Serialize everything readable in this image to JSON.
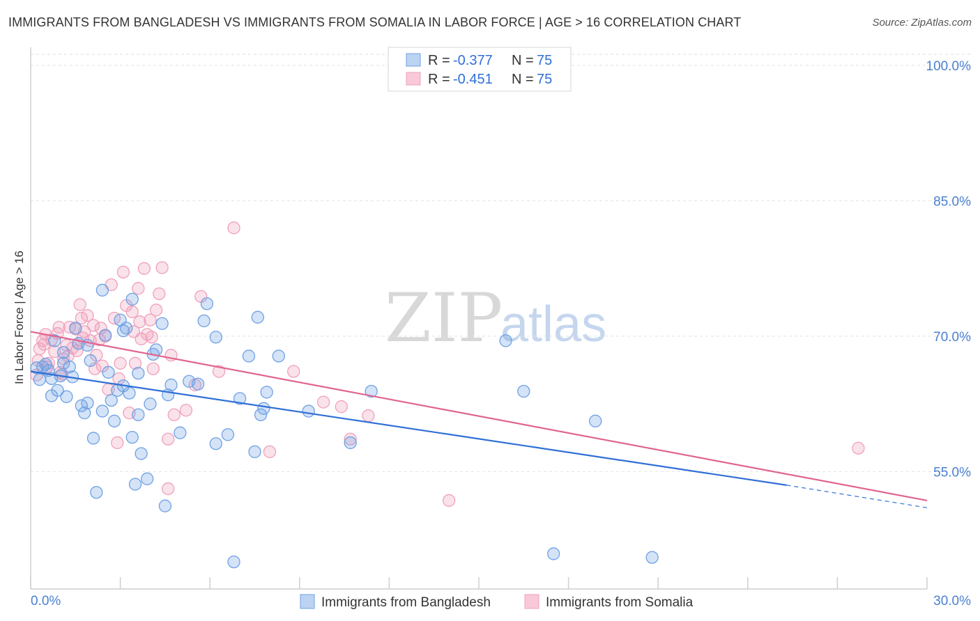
{
  "title": "IMMIGRANTS FROM BANGLADESH VS IMMIGRANTS FROM SOMALIA IN LABOR FORCE | AGE > 16 CORRELATION CHART",
  "source": "Source: ZipAtlas.com",
  "colors": {
    "bangladesh": "#6fa1e3",
    "bangladesh_line": "#2f6fd6",
    "somalia": "#f0a0bb",
    "somalia_line": "#e0648f",
    "tick": "#4a7fd0"
  },
  "legend": {
    "rows": [
      {
        "r_label": "R =",
        "r_value": "-0.377",
        "n_label": "N =",
        "n_value": "75"
      },
      {
        "r_label": "R =",
        "r_value": "-0.451",
        "n_label": "N =",
        "n_value": "75"
      }
    ]
  },
  "watermark": {
    "a": "ZIP",
    "b": "atlas"
  },
  "chart_data": {
    "type": "scatter",
    "xlabel": "",
    "ylabel": "In Labor Force | Age > 16",
    "xlim": [
      0,
      30
    ],
    "ylim": [
      42,
      102
    ],
    "x_tick_labels": [
      "0.0%",
      "30.0%"
    ],
    "y_ticks": [
      55,
      70,
      85,
      100
    ],
    "y_tick_labels": [
      "55.0%",
      "70.0%",
      "85.0%",
      "100.0%"
    ],
    "series": [
      {
        "name": "Immigrants from Bangladesh",
        "trend": {
          "x": [
            0,
            25.3
          ],
          "y": [
            66.1,
            53.5
          ],
          "dash_x": [
            25.3,
            30
          ],
          "dash_y": [
            53.5,
            51.0
          ]
        },
        "points": [
          [
            0.2,
            66.5
          ],
          [
            0.3,
            65.2
          ],
          [
            0.4,
            66.6
          ],
          [
            0.5,
            66.9
          ],
          [
            0.6,
            66.2
          ],
          [
            0.7,
            63.4
          ],
          [
            0.7,
            65.3
          ],
          [
            0.9,
            64.0
          ],
          [
            1.0,
            65.6
          ],
          [
            1.1,
            68.2
          ],
          [
            1.2,
            63.3
          ],
          [
            1.3,
            66.6
          ],
          [
            1.4,
            65.5
          ],
          [
            1.6,
            69.2
          ],
          [
            1.7,
            62.3
          ],
          [
            1.8,
            61.5
          ],
          [
            1.9,
            62.6
          ],
          [
            2.1,
            58.7
          ],
          [
            2.2,
            52.7
          ],
          [
            2.4,
            61.7
          ],
          [
            2.4,
            75.1
          ],
          [
            2.6,
            66.0
          ],
          [
            2.7,
            62.9
          ],
          [
            2.8,
            60.6
          ],
          [
            3.0,
            71.8
          ],
          [
            3.1,
            64.5
          ],
          [
            3.1,
            70.6
          ],
          [
            3.2,
            70.9
          ],
          [
            3.3,
            63.7
          ],
          [
            3.4,
            58.8
          ],
          [
            3.4,
            74.1
          ],
          [
            3.5,
            53.6
          ],
          [
            3.6,
            61.3
          ],
          [
            3.7,
            57.0
          ],
          [
            3.9,
            54.2
          ],
          [
            4.0,
            62.5
          ],
          [
            4.1,
            68.0
          ],
          [
            4.4,
            71.4
          ],
          [
            4.5,
            51.2
          ],
          [
            4.6,
            63.5
          ],
          [
            4.7,
            64.6
          ],
          [
            5.0,
            59.3
          ],
          [
            5.3,
            65.0
          ],
          [
            5.6,
            64.7
          ],
          [
            5.8,
            71.7
          ],
          [
            5.9,
            73.6
          ],
          [
            6.2,
            58.1
          ],
          [
            6.2,
            69.9
          ],
          [
            6.6,
            59.1
          ],
          [
            6.8,
            45.0
          ],
          [
            7.0,
            63.1
          ],
          [
            7.3,
            67.8
          ],
          [
            7.5,
            57.2
          ],
          [
            7.6,
            72.1
          ],
          [
            7.7,
            61.3
          ],
          [
            7.8,
            62.0
          ],
          [
            7.9,
            63.8
          ],
          [
            8.3,
            67.8
          ],
          [
            9.3,
            61.7
          ],
          [
            10.7,
            58.2
          ],
          [
            11.4,
            63.9
          ],
          [
            15.9,
            69.5
          ],
          [
            16.5,
            63.9
          ],
          [
            17.5,
            45.9
          ],
          [
            18.9,
            60.6
          ],
          [
            20.8,
            45.5
          ],
          [
            1.5,
            70.9
          ],
          [
            2.0,
            67.3
          ],
          [
            2.5,
            70.1
          ],
          [
            0.8,
            69.5
          ],
          [
            1.1,
            67.0
          ],
          [
            3.6,
            65.9
          ],
          [
            4.2,
            68.5
          ],
          [
            2.9,
            64.0
          ],
          [
            1.9,
            69.0
          ]
        ]
      },
      {
        "name": "Immigrants from Somalia",
        "trend": {
          "x": [
            0,
            30
          ],
          "y": [
            70.5,
            51.8
          ]
        },
        "points": [
          [
            0.2,
            65.7
          ],
          [
            0.3,
            68.6
          ],
          [
            0.4,
            69.5
          ],
          [
            0.5,
            70.2
          ],
          [
            0.6,
            67.0
          ],
          [
            0.7,
            69.6
          ],
          [
            0.8,
            68.3
          ],
          [
            0.9,
            70.3
          ],
          [
            1.0,
            66.0
          ],
          [
            1.1,
            67.5
          ],
          [
            1.2,
            69.0
          ],
          [
            1.3,
            71.0
          ],
          [
            1.4,
            68.7
          ],
          [
            1.5,
            70.8
          ],
          [
            1.6,
            69.2
          ],
          [
            1.7,
            72.0
          ],
          [
            1.8,
            70.5
          ],
          [
            1.9,
            72.3
          ],
          [
            2.0,
            69.5
          ],
          [
            2.1,
            71.2
          ],
          [
            2.2,
            67.9
          ],
          [
            2.3,
            69.6
          ],
          [
            2.4,
            66.7
          ],
          [
            2.5,
            70.0
          ],
          [
            2.6,
            64.1
          ],
          [
            2.7,
            75.7
          ],
          [
            2.8,
            72.0
          ],
          [
            2.9,
            58.2
          ],
          [
            3.0,
            67.0
          ],
          [
            3.1,
            77.1
          ],
          [
            3.2,
            73.4
          ],
          [
            3.3,
            61.5
          ],
          [
            3.4,
            72.7
          ],
          [
            3.5,
            67.0
          ],
          [
            3.6,
            75.3
          ],
          [
            3.7,
            69.7
          ],
          [
            3.8,
            77.5
          ],
          [
            3.9,
            70.2
          ],
          [
            4.0,
            71.8
          ],
          [
            4.1,
            66.4
          ],
          [
            4.2,
            72.9
          ],
          [
            4.3,
            74.7
          ],
          [
            4.4,
            77.6
          ],
          [
            4.6,
            58.6
          ],
          [
            4.6,
            53.1
          ],
          [
            4.7,
            67.9
          ],
          [
            4.8,
            61.3
          ],
          [
            5.2,
            61.8
          ],
          [
            5.5,
            64.6
          ],
          [
            5.7,
            74.4
          ],
          [
            6.3,
            66.1
          ],
          [
            6.8,
            82.0
          ],
          [
            8.0,
            57.2
          ],
          [
            8.8,
            66.1
          ],
          [
            9.8,
            62.7
          ],
          [
            10.4,
            62.2
          ],
          [
            10.7,
            58.6
          ],
          [
            11.3,
            61.2
          ],
          [
            14.0,
            51.8
          ],
          [
            27.7,
            57.6
          ],
          [
            0.25,
            67.3
          ],
          [
            0.45,
            69.1
          ],
          [
            1.05,
            65.8
          ],
          [
            1.55,
            68.4
          ],
          [
            2.35,
            70.9
          ],
          [
            0.95,
            71.0
          ],
          [
            1.75,
            69.8
          ],
          [
            2.95,
            65.3
          ],
          [
            3.65,
            71.6
          ],
          [
            4.05,
            69.9
          ],
          [
            0.55,
            66.6
          ],
          [
            1.25,
            67.8
          ],
          [
            2.15,
            66.4
          ],
          [
            1.65,
            73.5
          ],
          [
            3.45,
            70.5
          ]
        ]
      }
    ]
  },
  "bottom_legend": [
    {
      "label": "Immigrants from Bangladesh"
    },
    {
      "label": "Immigrants from Somalia"
    }
  ]
}
